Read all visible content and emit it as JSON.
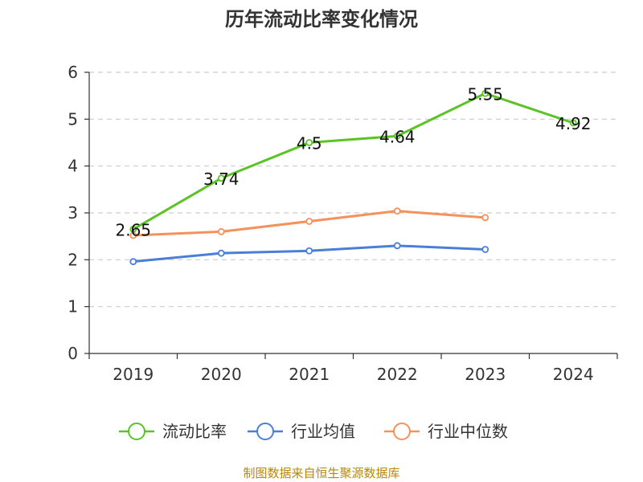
{
  "chart_data": {
    "type": "line",
    "title": "历年流动比率变化情况",
    "categories": [
      "2019",
      "2020",
      "2021",
      "2022",
      "2023",
      "2024"
    ],
    "ylim": [
      0,
      6
    ],
    "yticks": [
      "0",
      "1",
      "2",
      "3",
      "4",
      "5",
      "6"
    ],
    "grid": true,
    "legend_position": "bottom",
    "series": [
      {
        "name": "流动比率",
        "color": "#5bc325",
        "values": [
          2.65,
          3.74,
          4.5,
          4.64,
          5.55,
          4.92
        ],
        "labels": [
          "2.65",
          "3.74",
          "4.5",
          "4.64",
          "5.55",
          "4.92"
        ]
      },
      {
        "name": "行业均值",
        "color": "#4a7fd8",
        "values": [
          1.96,
          2.14,
          2.19,
          2.3,
          2.22,
          null
        ]
      },
      {
        "name": "行业中位数",
        "color": "#f5915a",
        "values": [
          2.52,
          2.6,
          2.82,
          3.04,
          2.9,
          null
        ]
      }
    ],
    "source": "制图数据来自恒生聚源数据库"
  }
}
